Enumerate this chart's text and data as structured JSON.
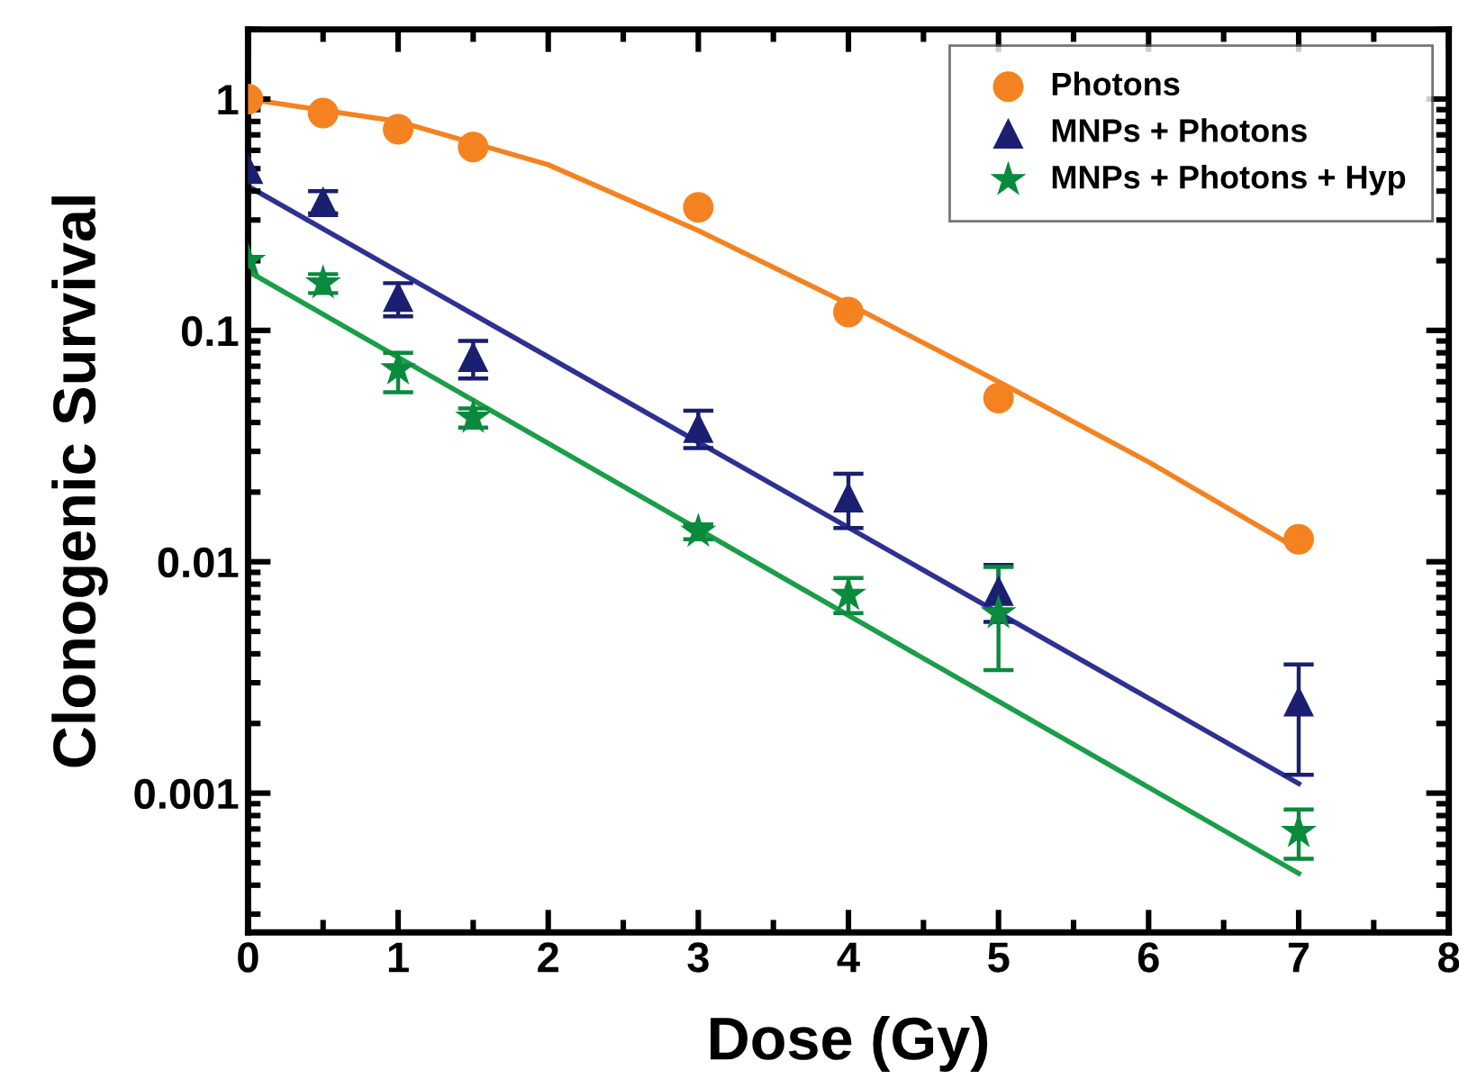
{
  "chart_data": {
    "type": "scatter",
    "xlabel": "Dose (Gy)",
    "ylabel": "Clonogenic Survival",
    "log": "y",
    "xlim": [
      0,
      8
    ],
    "xticks": [
      0,
      1,
      2,
      3,
      4,
      5,
      6,
      7,
      8
    ],
    "ylim": [
      0.00025,
      2
    ],
    "yticks": [
      {
        "value": 0.001,
        "label": "0.001"
      },
      {
        "value": 0.01,
        "label": "0.01"
      },
      {
        "value": 0.1,
        "label": "0.1"
      },
      1
    ],
    "grid": false,
    "legend": "top right",
    "series": [
      {
        "name": "Photons",
        "color": "#f58220",
        "marker": "circle",
        "x": [
          0,
          0.5,
          1,
          1.5,
          3,
          4,
          5,
          7
        ],
        "values": [
          1.0,
          0.87,
          0.74,
          0.62,
          0.34,
          0.12,
          0.051,
          0.0125
        ]
      },
      {
        "name": "MNPs + Photons",
        "color": "#1a1f71",
        "marker": "triangle",
        "x": [
          0,
          0.5,
          1,
          1.5,
          3,
          4,
          5,
          7
        ],
        "values": [
          0.5,
          0.36,
          0.14,
          0.077,
          0.038,
          0.019,
          0.0075,
          0.0025
        ],
        "errors": [
          null,
          [
            0.32,
            0.4
          ],
          [
            0.115,
            0.16
          ],
          [
            0.062,
            0.09
          ],
          [
            0.031,
            0.045
          ],
          [
            0.014,
            0.024
          ],
          [
            0.0055,
            0.0097
          ],
          [
            0.0012,
            0.0036
          ]
        ]
      },
      {
        "name": "MNPs + Photons + Hyp",
        "color": "#0a8a3c",
        "marker": "star",
        "x": [
          0,
          0.5,
          1,
          1.5,
          3,
          4,
          5,
          7
        ],
        "values": [
          0.2,
          0.16,
          0.068,
          0.042,
          0.0135,
          0.0072,
          0.006,
          0.00068
        ],
        "errors": [
          null,
          [
            0.145,
            0.175
          ],
          [
            0.054,
            0.08
          ],
          [
            0.038,
            0.046
          ],
          [
            0.0125,
            0.0145
          ],
          [
            0.006,
            0.0085
          ],
          [
            0.0034,
            0.0095
          ],
          [
            0.00052,
            0.00085
          ]
        ]
      },
      {
        "type": "line",
        "color": "#f58220",
        "marker": "none",
        "x": [
          0,
          1,
          2,
          3,
          4,
          5,
          6,
          7
        ],
        "values": [
          1.0,
          0.8,
          0.52,
          0.27,
          0.13,
          0.06,
          0.027,
          0.0113
        ]
      },
      {
        "type": "line",
        "color": "#2e3192",
        "marker": "none",
        "x": [
          0,
          7
        ],
        "values": [
          0.42,
          0.0011
        ]
      },
      {
        "type": "line",
        "color": "#1a9e47",
        "marker": "none",
        "x": [
          0,
          7
        ],
        "values": [
          0.18,
          0.00045
        ]
      }
    ]
  }
}
